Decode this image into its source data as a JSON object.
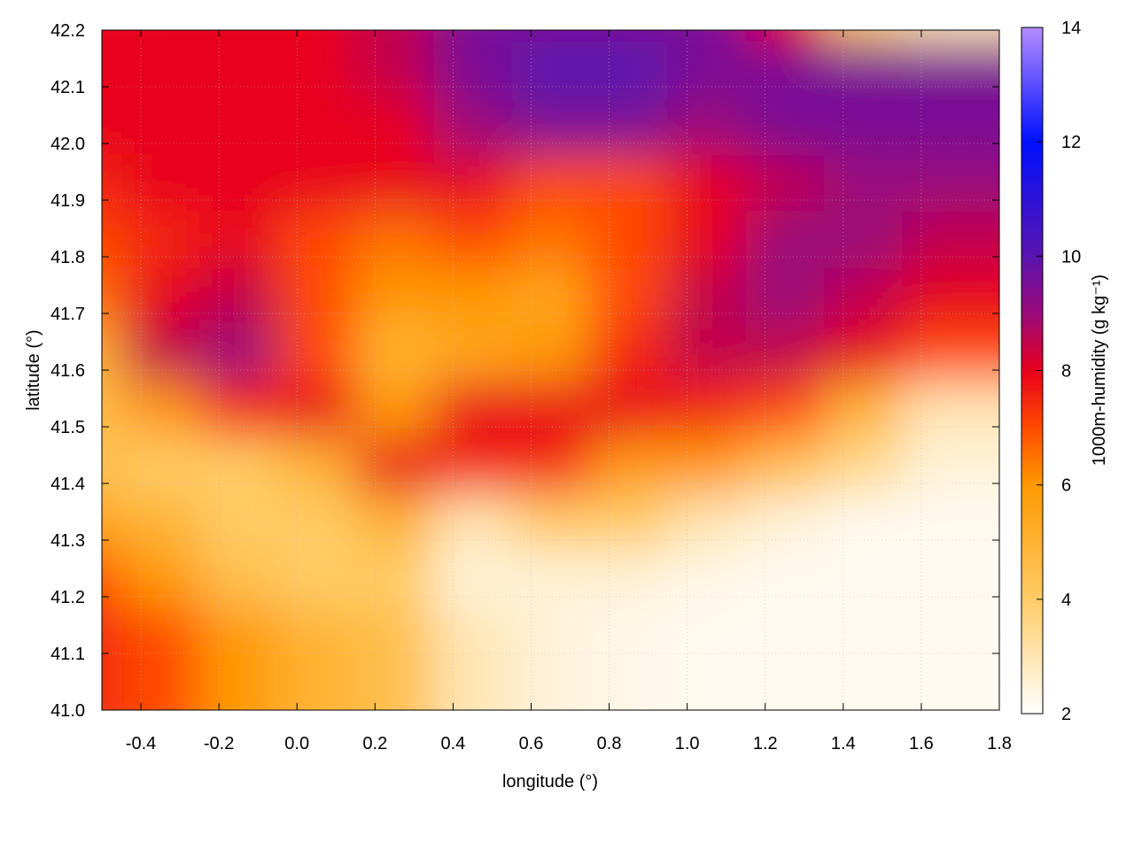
{
  "chart_data": {
    "type": "heatmap",
    "xlabel": "longitude (°)",
    "ylabel": "latitude (°)",
    "colorbar_label": "1000m-humidity (g kg⁻¹)",
    "xlim": [
      -0.5,
      1.8
    ],
    "ylim": [
      41.0,
      42.2
    ],
    "zlim": [
      2,
      14
    ],
    "x_ticks": [
      "-0.4",
      "-0.2",
      "0.0",
      "0.2",
      "0.4",
      "0.6",
      "0.8",
      "1.0",
      "1.2",
      "1.4",
      "1.6",
      "1.8"
    ],
    "y_ticks": [
      "41.0",
      "41.1",
      "41.2",
      "41.3",
      "41.4",
      "41.5",
      "41.6",
      "41.7",
      "41.8",
      "41.9",
      "42.0",
      "42.1",
      "42.2"
    ],
    "z_ticks": [
      "2",
      "4",
      "6",
      "8",
      "10",
      "12",
      "14"
    ],
    "grid": true,
    "x": [
      -0.4,
      -0.2,
      0.0,
      0.2,
      0.4,
      0.6,
      0.8,
      1.0,
      1.2,
      1.4,
      1.6,
      1.8
    ],
    "y": [
      42.15,
      42.05,
      41.95,
      41.85,
      41.75,
      41.65,
      41.55,
      41.45,
      41.35,
      41.25,
      41.15,
      41.05
    ],
    "z": [
      [
        8,
        8,
        8,
        8,
        8.5,
        9.5,
        9.5,
        9.5,
        9.5,
        8,
        4,
        3
      ],
      [
        8,
        8,
        8,
        8,
        8.5,
        9.5,
        10,
        10,
        9.5,
        9.5,
        9.5,
        9.5
      ],
      [
        8,
        8,
        8,
        8,
        8,
        9,
        9.5,
        9.5,
        9,
        9.5,
        9.5,
        9.5
      ],
      [
        7.5,
        8,
        8,
        8,
        8,
        8,
        7,
        7,
        8,
        8.5,
        9,
        9
      ],
      [
        7,
        7.5,
        8,
        7,
        6.5,
        7,
        6.5,
        7,
        8,
        9,
        9,
        8.5
      ],
      [
        6.5,
        8,
        8.5,
        7,
        6,
        6,
        5.5,
        7,
        8.5,
        9,
        8.5,
        8
      ],
      [
        5,
        8.5,
        9,
        7,
        5,
        5.5,
        6,
        7.5,
        8.5,
        8.5,
        8,
        7
      ],
      [
        4.5,
        6,
        7.5,
        8,
        6,
        8,
        8,
        8,
        7.5,
        7,
        5,
        3
      ],
      [
        4.5,
        4,
        4,
        5,
        8,
        7.5,
        7.5,
        6,
        6,
        4.5,
        3.5,
        2.5
      ],
      [
        5.5,
        5,
        4,
        4,
        5,
        3,
        4,
        4,
        3,
        2.5,
        2.2,
        2.2
      ],
      [
        7,
        6,
        4.5,
        4,
        4,
        2.5,
        2.5,
        2.5,
        2.3,
        2.2,
        2.2,
        2.2
      ],
      [
        7.5,
        7,
        6,
        5,
        4.5,
        3,
        2.5,
        2.3,
        2.2,
        2.2,
        2.2,
        2.2
      ]
    ],
    "colormap": [
      [
        2,
        "#ffffff"
      ],
      [
        4,
        "#ffcc66"
      ],
      [
        6,
        "#ff9900"
      ],
      [
        7,
        "#ff4a00"
      ],
      [
        8,
        "#e8001c"
      ],
      [
        9,
        "#9a0a7a"
      ],
      [
        10,
        "#5a14b0"
      ],
      [
        12,
        "#0010ff"
      ],
      [
        14,
        "#b48cff"
      ]
    ]
  }
}
